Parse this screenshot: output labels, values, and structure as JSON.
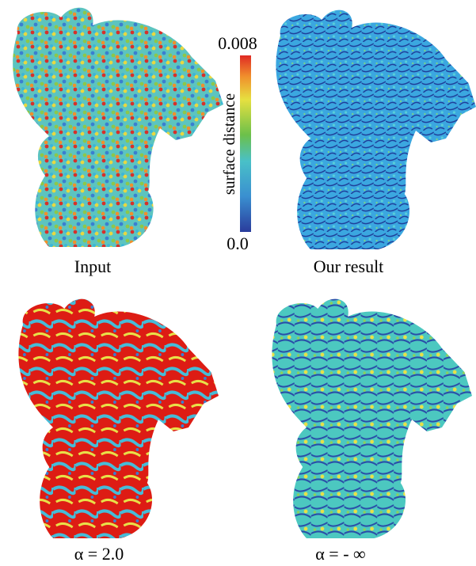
{
  "colorbar": {
    "max_label": "0.008",
    "min_label": "0.0",
    "title": "surface distance"
  },
  "panels": [
    {
      "caption": "Input"
    },
    {
      "caption": "Our result"
    },
    {
      "caption": "α = 2.0"
    },
    {
      "caption": "α = - ∞"
    }
  ]
}
